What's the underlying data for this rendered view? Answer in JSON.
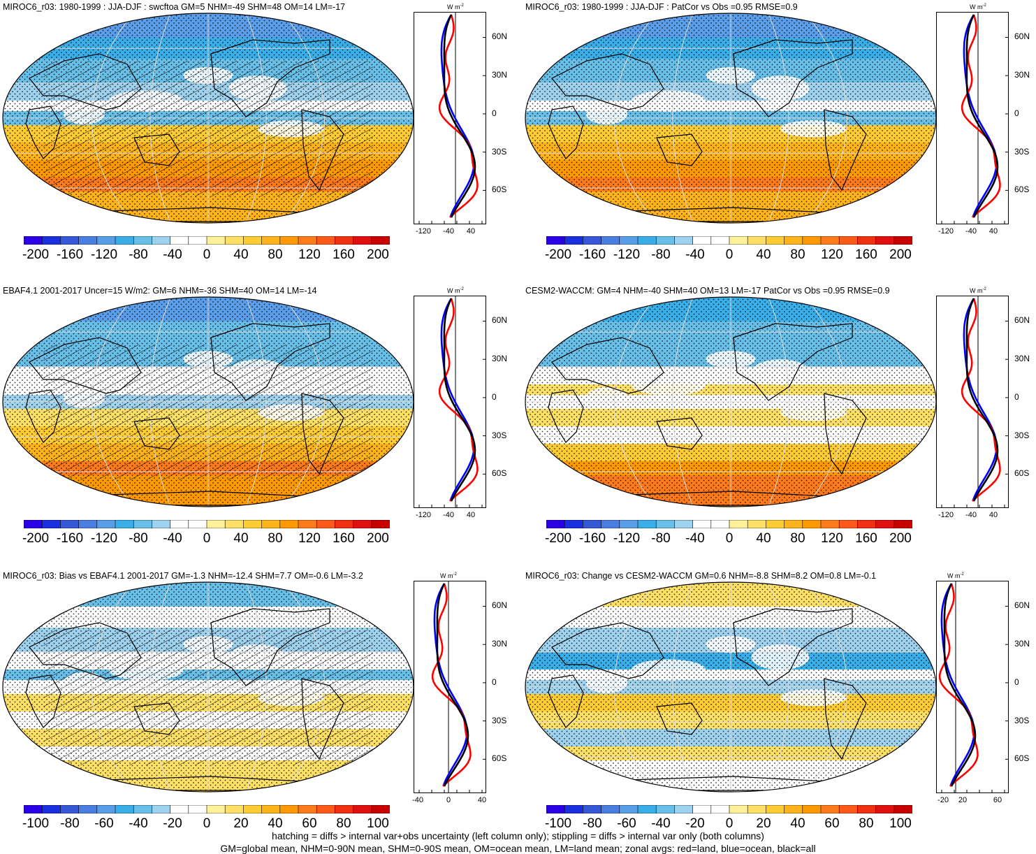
{
  "panels": [
    {
      "title": "MIROC6_r03: 1980-1999 : JJA-DJF : swcftoa GM=5 NHM=-49 SHM=48 OM=14 LM=-17",
      "variant": "model",
      "hatch": true,
      "scale": "wide"
    },
    {
      "title": "MIROC6_r03: 1980-1999 : JJA-DJF : PatCor vs Obs =0.95 RMSE=0.9",
      "variant": "model",
      "hatch": false,
      "scale": "wide"
    },
    {
      "title": "EBAF4.1 2001-2017 Uncer=15 W/m2: GM=6 NHM=-36 SHM=40 OM=14 LM=-14",
      "variant": "obs",
      "hatch": true,
      "scale": "wide"
    },
    {
      "title": "CESM2-WACCM: GM=4 NHM=-40 SHM=40 OM=13 LM=-17 PatCor vs Obs =0.95 RMSE=0.9",
      "variant": "cesm",
      "hatch": false,
      "scale": "wide"
    },
    {
      "title": "MIROC6_r03: Bias vs EBAF4.1 2001-2017 GM=-1.3 NHM=-12.4 SHM=7.7 OM=-0.6 LM=-3.2",
      "variant": "bias",
      "hatch": true,
      "scale": "narrow"
    },
    {
      "title": "MIROC6_r03: Change vs CESM2-WACCM GM=0.6 NHM=-8.8 SHM=8.2 OM=0.8 LM=-0.1",
      "variant": "change",
      "hatch": false,
      "scale": "narrow"
    }
  ],
  "colorbars": {
    "wide": {
      "labels": [
        "-200",
        "-160",
        "-120",
        "-80",
        "-40",
        "0",
        "40",
        "80",
        "120",
        "160",
        "200"
      ]
    },
    "narrow": {
      "labels": [
        "-100",
        "-80",
        "-60",
        "-40",
        "-20",
        "0",
        "20",
        "40",
        "60",
        "80",
        "100"
      ]
    }
  },
  "colors": [
    "#2a00e6",
    "#1a2fe0",
    "#3657d8",
    "#4a7ee0",
    "#5a9de8",
    "#3aaee8",
    "#68bfe8",
    "#9ed2ee",
    "#ffffff",
    "#ffffff",
    "#fff09a",
    "#ffe066",
    "#ffcc33",
    "#ffb31a",
    "#ff9900",
    "#ff7a1a",
    "#ff5a1a",
    "#f03010",
    "#e01010",
    "#c80000"
  ],
  "zonal": {
    "unit": "W m",
    "unit_sup": "-2",
    "lat_labels": [
      "60N",
      "30N",
      "0",
      "30S",
      "60S"
    ],
    "xticks_wide": [
      "-120",
      "-40",
      "40"
    ],
    "xticks_bias": [
      "-40",
      "0",
      "40"
    ],
    "xticks_change": [
      "-20",
      "20",
      "60"
    ],
    "legend_colors": {
      "land": "#ff0000",
      "ocean": "#0000ff",
      "all": "#000000"
    }
  },
  "footnote": {
    "line1": "hatching = diffs > internal var+obs uncertainty (left column only); stippling = diffs > internal var only (both columns)",
    "line2": "GM=global mean, NHM=0-90N mean, SHM=0-90S mean, OM=ocean mean, LM=land mean; zonal avgs: red=land, blue=ocean, black=all"
  }
}
